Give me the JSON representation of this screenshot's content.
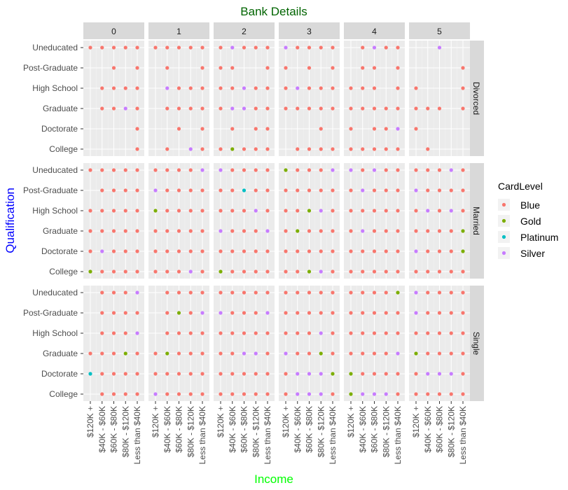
{
  "chart_data": {
    "type": "scatter",
    "title": "Bank Details",
    "xlabel": "Income",
    "ylabel": "Qualification",
    "title_color": "#006400",
    "xlabel_color": "#00FF00",
    "ylabel_color": "#0000FF",
    "facet_cols": [
      "0",
      "1",
      "2",
      "3",
      "4",
      "5"
    ],
    "facet_rows": [
      "Divorced",
      "Married",
      "Single"
    ],
    "x_categories": [
      "$120K +",
      "$40K - $60K",
      "$60K - $80K",
      "$80K - $120K",
      "Less than $40K"
    ],
    "y_categories": [
      "College",
      "Doctorate",
      "Graduate",
      "High School",
      "Post-Graduate",
      "Uneducated"
    ],
    "legend": {
      "title": "CardLevel",
      "placement": "right",
      "entries": [
        "Blue",
        "Gold",
        "Platinum",
        "Silver"
      ],
      "colors": [
        "#F8766D",
        "#7CAE00",
        "#00BFC4",
        "#C77CFF"
      ]
    },
    "grid": true,
    "points_note": "Each cell: one character per x category; . = none, B = Blue, G = Gold, P = Platinum, S = Silver (top point shown)",
    "points": {
      "Divorced": {
        "0": {
          "Uneducated": "BBBBB",
          "Post-Graduate": "..B.B",
          "High School": ".BBBB",
          "Graduate": ".BBSB",
          "Doctorate": "....B",
          "College": "....B"
        },
        "1": {
          "Uneducated": "BBBBB",
          "Post-Graduate": ".B..B",
          "High School": ".SBBB",
          "Graduate": ".BBBB",
          "Doctorate": "..B.B",
          "College": ".B.SB"
        },
        "2": {
          "Uneducated": "BSBBB",
          "Post-Graduate": "BB..B",
          "High School": "BBSBB",
          "Graduate": "BSSBB",
          "Doctorate": ".B.BB",
          "College": "BGBBB"
        },
        "3": {
          "Uneducated": "SBBBB",
          "Post-Graduate": "B.B.B",
          "High School": "BSBBB",
          "Graduate": "BBBBB",
          "Doctorate": "...B.",
          "College": ".BBBB"
        },
        "4": {
          "Uneducated": ".BSBB",
          "Post-Graduate": ".BB.B",
          "High School": "BBB.B",
          "Graduate": "BBBBB",
          "Doctorate": "B.BBS",
          "College": "BBBBB"
        },
        "5": {
          "Uneducated": "..S..",
          "Post-Graduate": "....B",
          "High School": "B...B",
          "Graduate": "BBB.B",
          "Doctorate": "B....",
          "College": ".B..."
        }
      },
      "Married": {
        "0": {
          "Uneducated": "BBBBB",
          "Post-Graduate": ".BBBB",
          "High School": "BBBBB",
          "Graduate": "BBBBB",
          "Doctorate": "BSBBB",
          "College": "GBBBB"
        },
        "1": {
          "Uneducated": "BBBBS",
          "Post-Graduate": "SBBBB",
          "High School": "GBBBB",
          "Graduate": "BBBBB",
          "Doctorate": "BBBBB",
          "College": "BBBSB"
        },
        "2": {
          "Uneducated": "SBBBB",
          "Post-Graduate": "BBPBB",
          "High School": "BBBSB",
          "Graduate": "SBBBS",
          "Doctorate": "BBBBB",
          "College": "GBBBB"
        },
        "3": {
          "Uneducated": "GBBBS",
          "Post-Graduate": "BBBBB",
          "High School": "BBGSB",
          "Graduate": "BGBBB",
          "Doctorate": "BBBBB",
          "College": "BBGSB"
        },
        "4": {
          "Uneducated": "SBSBB",
          "Post-Graduate": "BSBBB",
          "High School": "BBBBB",
          "Graduate": "BSBBB",
          "Doctorate": "BBBBB",
          "College": "BBBBB"
        },
        "5": {
          "Uneducated": "BBBSB",
          "Post-Graduate": "SBBBB",
          "High School": "BSBSB",
          "Graduate": "BBBBG",
          "Doctorate": "SBBBG",
          "College": "BBBBB"
        }
      },
      "Single": {
        "0": {
          "Uneducated": ".BBBS",
          "Post-Graduate": ".BBBB",
          "High School": ".BBBS",
          "Graduate": "BBBGB",
          "Doctorate": "PBBBB",
          "College": ".BBBB"
        },
        "1": {
          "Uneducated": ".BBBB",
          "Post-Graduate": ".BGBS",
          "High School": ".BBBB",
          "Graduate": "BGBBB",
          "Doctorate": "BBBBB",
          "College": "SBBBB"
        },
        "2": {
          "Uneducated": "BBBBB",
          "Post-Graduate": "SBBBS",
          "High School": "BBBBB",
          "Graduate": "BBSSB",
          "Doctorate": "BBBBB",
          "College": "BBBBB"
        },
        "3": {
          "Uneducated": "BBBBB",
          "Post-Graduate": "BBBBB",
          "High School": "BBBSB",
          "Graduate": "SBBGB",
          "Doctorate": "BSSSG",
          "College": "BSSSB"
        },
        "4": {
          "Uneducated": "BBBBG",
          "Post-Graduate": "BBBBB",
          "High School": "BBBBB",
          "Graduate": "BBBBS",
          "Doctorate": "GBBBB",
          "College": "GSSSB"
        },
        "5": {
          "Uneducated": "SBBBB",
          "Post-Graduate": "SBBBB",
          "High School": "BBBBB",
          "Graduate": "GBBBB",
          "Doctorate": "BSSSB",
          "College": "BBBBB"
        }
      }
    }
  }
}
